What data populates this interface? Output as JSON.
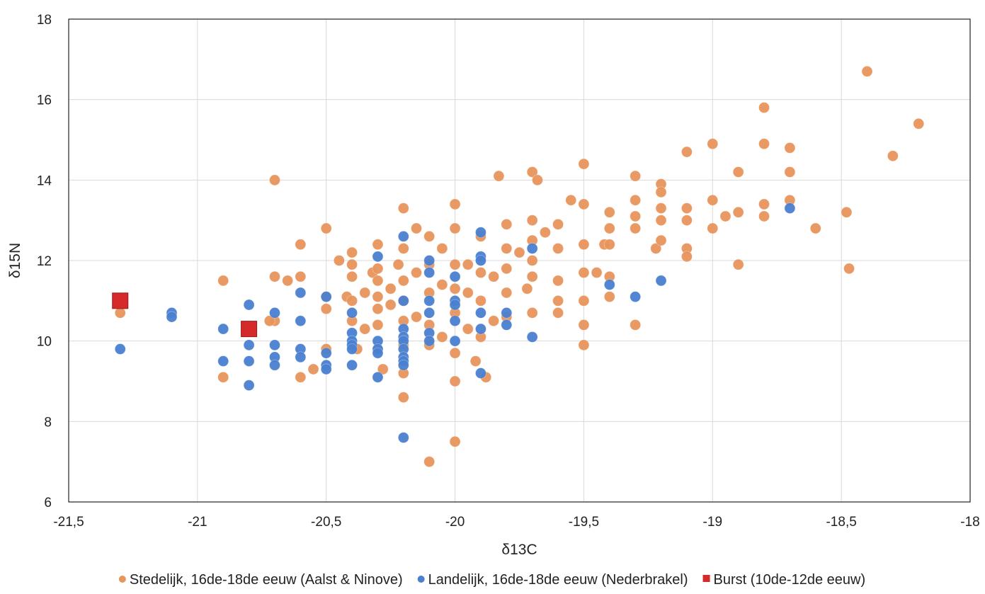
{
  "chart_data": {
    "type": "scatter",
    "title": "",
    "xlabel": "δ13C",
    "ylabel": "δ15N",
    "xlim": [
      -21.5,
      -18
    ],
    "ylim": [
      6,
      18
    ],
    "x_ticks": [
      -21.5,
      -21,
      -20.5,
      -20,
      -19.5,
      -19,
      -18.5,
      -18
    ],
    "y_ticks": [
      6,
      8,
      10,
      12,
      14,
      16,
      18
    ],
    "x_tick_labels": [
      "-21,5",
      "-21",
      "-20,5",
      "-20",
      "-19,5",
      "-19",
      "-18,5",
      "-18"
    ],
    "y_tick_labels": [
      "6",
      "8",
      "10",
      "12",
      "14",
      "16",
      "18"
    ],
    "grid": true,
    "legend_position": "bottom",
    "series": [
      {
        "name": "Stedelijk, 16de-18de eeuw (Aalst & Ninove)",
        "color": "#e8955c",
        "marker": "circle",
        "points": [
          [
            -21.3,
            10.7
          ],
          [
            -20.9,
            11.5
          ],
          [
            -20.9,
            9.1
          ],
          [
            -20.7,
            14.0
          ],
          [
            -20.7,
            11.6
          ],
          [
            -20.7,
            10.5
          ],
          [
            -20.72,
            10.5
          ],
          [
            -20.65,
            11.5
          ],
          [
            -20.6,
            12.4
          ],
          [
            -20.6,
            11.6
          ],
          [
            -20.6,
            9.1
          ],
          [
            -20.55,
            9.3
          ],
          [
            -20.5,
            12.8
          ],
          [
            -20.5,
            11.1
          ],
          [
            -20.5,
            10.8
          ],
          [
            -20.5,
            9.8
          ],
          [
            -20.45,
            12.0
          ],
          [
            -20.42,
            11.1
          ],
          [
            -20.4,
            12.2
          ],
          [
            -20.4,
            11.9
          ],
          [
            -20.4,
            11.6
          ],
          [
            -20.4,
            11.0
          ],
          [
            -20.4,
            10.5
          ],
          [
            -20.38,
            9.8
          ],
          [
            -20.35,
            11.2
          ],
          [
            -20.35,
            10.3
          ],
          [
            -20.32,
            11.7
          ],
          [
            -20.3,
            12.4
          ],
          [
            -20.3,
            11.8
          ],
          [
            -20.3,
            11.5
          ],
          [
            -20.3,
            11.1
          ],
          [
            -20.3,
            10.8
          ],
          [
            -20.3,
            10.4
          ],
          [
            -20.3,
            9.8
          ],
          [
            -20.28,
            9.3
          ],
          [
            -20.25,
            11.3
          ],
          [
            -20.25,
            10.9
          ],
          [
            -20.22,
            11.9
          ],
          [
            -20.2,
            13.3
          ],
          [
            -20.2,
            12.3
          ],
          [
            -20.2,
            11.5
          ],
          [
            -20.2,
            11.0
          ],
          [
            -20.2,
            10.5
          ],
          [
            -20.2,
            9.9
          ],
          [
            -20.2,
            9.2
          ],
          [
            -20.2,
            8.6
          ],
          [
            -20.15,
            12.8
          ],
          [
            -20.15,
            11.7
          ],
          [
            -20.15,
            10.6
          ],
          [
            -20.1,
            12.6
          ],
          [
            -20.1,
            11.9
          ],
          [
            -20.1,
            11.2
          ],
          [
            -20.1,
            10.4
          ],
          [
            -20.1,
            9.9
          ],
          [
            -20.1,
            7.0
          ],
          [
            -20.05,
            12.3
          ],
          [
            -20.05,
            11.4
          ],
          [
            -20.05,
            10.1
          ],
          [
            -20.0,
            13.4
          ],
          [
            -20.0,
            12.8
          ],
          [
            -20.0,
            11.9
          ],
          [
            -20.0,
            11.3
          ],
          [
            -20.0,
            10.7
          ],
          [
            -20.0,
            9.7
          ],
          [
            -20.0,
            9.0
          ],
          [
            -20.0,
            7.5
          ],
          [
            -19.95,
            11.9
          ],
          [
            -19.95,
            11.2
          ],
          [
            -19.95,
            10.3
          ],
          [
            -19.92,
            9.5
          ],
          [
            -19.9,
            12.6
          ],
          [
            -19.9,
            11.7
          ],
          [
            -19.9,
            11.0
          ],
          [
            -19.9,
            10.1
          ],
          [
            -19.88,
            9.1
          ],
          [
            -19.85,
            11.6
          ],
          [
            -19.85,
            10.5
          ],
          [
            -19.83,
            14.1
          ],
          [
            -19.8,
            12.9
          ],
          [
            -19.8,
            12.3
          ],
          [
            -19.8,
            11.8
          ],
          [
            -19.8,
            11.2
          ],
          [
            -19.8,
            10.6
          ],
          [
            -19.75,
            12.2
          ],
          [
            -19.72,
            11.3
          ],
          [
            -19.7,
            14.2
          ],
          [
            -19.7,
            13.0
          ],
          [
            -19.7,
            12.5
          ],
          [
            -19.7,
            12.0
          ],
          [
            -19.7,
            11.6
          ],
          [
            -19.7,
            10.7
          ],
          [
            -19.68,
            14.0
          ],
          [
            -19.65,
            12.7
          ],
          [
            -19.6,
            12.9
          ],
          [
            -19.6,
            12.3
          ],
          [
            -19.6,
            11.5
          ],
          [
            -19.6,
            11.0
          ],
          [
            -19.6,
            10.7
          ],
          [
            -19.55,
            13.5
          ],
          [
            -19.5,
            14.4
          ],
          [
            -19.5,
            13.4
          ],
          [
            -19.5,
            12.4
          ],
          [
            -19.5,
            11.7
          ],
          [
            -19.5,
            11.0
          ],
          [
            -19.5,
            10.4
          ],
          [
            -19.5,
            9.9
          ],
          [
            -19.45,
            11.7
          ],
          [
            -19.42,
            12.4
          ],
          [
            -19.4,
            13.2
          ],
          [
            -19.4,
            12.8
          ],
          [
            -19.4,
            12.4
          ],
          [
            -19.4,
            11.6
          ],
          [
            -19.4,
            11.1
          ],
          [
            -19.3,
            14.1
          ],
          [
            -19.3,
            13.5
          ],
          [
            -19.3,
            13.1
          ],
          [
            -19.3,
            12.8
          ],
          [
            -19.3,
            10.4
          ],
          [
            -19.22,
            12.3
          ],
          [
            -19.2,
            13.9
          ],
          [
            -19.2,
            13.7
          ],
          [
            -19.2,
            13.3
          ],
          [
            -19.2,
            13.0
          ],
          [
            -19.2,
            12.5
          ],
          [
            -19.1,
            14.7
          ],
          [
            -19.1,
            13.3
          ],
          [
            -19.1,
            13.0
          ],
          [
            -19.1,
            12.3
          ],
          [
            -19.1,
            12.1
          ],
          [
            -19.0,
            14.9
          ],
          [
            -19.0,
            13.5
          ],
          [
            -19.0,
            12.8
          ],
          [
            -18.95,
            13.1
          ],
          [
            -18.9,
            14.2
          ],
          [
            -18.9,
            13.2
          ],
          [
            -18.9,
            11.9
          ],
          [
            -18.8,
            15.8
          ],
          [
            -18.8,
            14.9
          ],
          [
            -18.8,
            13.4
          ],
          [
            -18.8,
            13.1
          ],
          [
            -18.7,
            14.8
          ],
          [
            -18.7,
            14.2
          ],
          [
            -18.7,
            13.5
          ],
          [
            -18.6,
            12.8
          ],
          [
            -18.48,
            13.2
          ],
          [
            -18.47,
            11.8
          ],
          [
            -18.4,
            16.7
          ],
          [
            -18.3,
            14.6
          ],
          [
            -18.2,
            15.4
          ]
        ]
      },
      {
        "name": "Landelijk, 16de-18de eeuw (Nederbrakel)",
        "color": "#4a80d0",
        "marker": "circle",
        "points": [
          [
            -21.3,
            9.8
          ],
          [
            -21.1,
            10.7
          ],
          [
            -21.1,
            10.6
          ],
          [
            -20.9,
            10.3
          ],
          [
            -20.9,
            9.5
          ],
          [
            -20.8,
            10.9
          ],
          [
            -20.8,
            9.9
          ],
          [
            -20.8,
            9.5
          ],
          [
            -20.8,
            8.9
          ],
          [
            -20.7,
            10.7
          ],
          [
            -20.7,
            9.9
          ],
          [
            -20.7,
            9.6
          ],
          [
            -20.7,
            9.4
          ],
          [
            -20.6,
            11.2
          ],
          [
            -20.6,
            10.5
          ],
          [
            -20.6,
            9.8
          ],
          [
            -20.6,
            9.6
          ],
          [
            -20.5,
            11.1
          ],
          [
            -20.5,
            9.7
          ],
          [
            -20.5,
            9.4
          ],
          [
            -20.5,
            9.3
          ],
          [
            -20.4,
            10.7
          ],
          [
            -20.4,
            10.2
          ],
          [
            -20.4,
            10.0
          ],
          [
            -20.4,
            9.9
          ],
          [
            -20.4,
            9.8
          ],
          [
            -20.4,
            9.4
          ],
          [
            -20.3,
            12.1
          ],
          [
            -20.3,
            10.0
          ],
          [
            -20.3,
            9.8
          ],
          [
            -20.3,
            9.7
          ],
          [
            -20.3,
            9.1
          ],
          [
            -20.2,
            12.6
          ],
          [
            -20.2,
            11.0
          ],
          [
            -20.2,
            10.3
          ],
          [
            -20.2,
            10.1
          ],
          [
            -20.2,
            10.0
          ],
          [
            -20.2,
            9.8
          ],
          [
            -20.2,
            9.6
          ],
          [
            -20.2,
            9.5
          ],
          [
            -20.2,
            9.4
          ],
          [
            -20.2,
            7.6
          ],
          [
            -20.1,
            12.0
          ],
          [
            -20.1,
            11.7
          ],
          [
            -20.1,
            11.0
          ],
          [
            -20.1,
            10.7
          ],
          [
            -20.1,
            10.2
          ],
          [
            -20.1,
            10.0
          ],
          [
            -20.0,
            11.6
          ],
          [
            -20.0,
            11.0
          ],
          [
            -20.0,
            10.9
          ],
          [
            -20.0,
            10.5
          ],
          [
            -20.0,
            10.0
          ],
          [
            -19.9,
            12.7
          ],
          [
            -19.9,
            12.1
          ],
          [
            -19.9,
            12.0
          ],
          [
            -19.9,
            10.7
          ],
          [
            -19.9,
            10.3
          ],
          [
            -19.9,
            9.2
          ],
          [
            -19.8,
            10.7
          ],
          [
            -19.8,
            10.4
          ],
          [
            -19.7,
            12.3
          ],
          [
            -19.7,
            10.1
          ],
          [
            -19.4,
            11.4
          ],
          [
            -19.3,
            11.1
          ],
          [
            -19.2,
            11.5
          ],
          [
            -18.7,
            13.3
          ]
        ]
      },
      {
        "name": "Burst (10de-12de eeuw)",
        "color": "#d42a2a",
        "marker": "square",
        "points": [
          [
            -21.3,
            11.0
          ],
          [
            -20.8,
            10.3
          ]
        ]
      }
    ]
  }
}
